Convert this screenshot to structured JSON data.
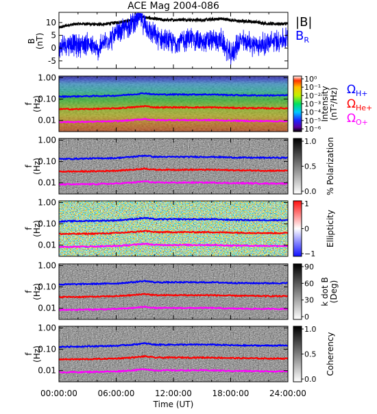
{
  "title": "ACE Mag 2004-086",
  "legend": {
    "B_total": {
      "label": "|B|",
      "color": "#000000"
    },
    "B_R": {
      "label": "B",
      "sub": "R",
      "color": "#0000ff"
    },
    "O_H": {
      "label": "Ω",
      "sub": "H+",
      "color": "#0000ff"
    },
    "O_He": {
      "label": "Ω",
      "sub": "He+",
      "color": "#ff0000"
    },
    "O_O": {
      "label": "Ω",
      "sub": "O+",
      "color": "#ff00ff"
    }
  },
  "x_axis": {
    "label": "Time (UT)",
    "ticks": [
      "00:00:00",
      "06:00:00",
      "12:00:00",
      "18:00:00",
      "24:00:00"
    ],
    "range_hours": [
      0,
      24
    ]
  },
  "chart_data": [
    {
      "type": "line",
      "title": "ACE Mag 2004-086",
      "ylabel": "B",
      "yunit": "(nT)",
      "xlabel": "",
      "ylim": [
        -8,
        14
      ],
      "yticks": [
        "10",
        "5",
        "0",
        "-5"
      ],
      "x": [
        0,
        1,
        2,
        3,
        4,
        5,
        6,
        7,
        8,
        8.5,
        9,
        10,
        11,
        12,
        13,
        14,
        15,
        16,
        17,
        18,
        19,
        20,
        21,
        22,
        23,
        24
      ],
      "series": [
        {
          "name": "|B|",
          "color": "#000000",
          "values": [
            8,
            9,
            9.5,
            9.5,
            9.2,
            9.5,
            10,
            10.5,
            11,
            12.5,
            12,
            11.5,
            11,
            11,
            11.2,
            11,
            11,
            11.2,
            11.5,
            11,
            10.5,
            10.5,
            10,
            9.5,
            9.5,
            9.5
          ]
        },
        {
          "name": "B_R",
          "color": "#0000ff",
          "values": [
            0,
            2,
            1,
            2,
            -1,
            3,
            5,
            8,
            11,
            12,
            9,
            5,
            3,
            2,
            3,
            4,
            2,
            3,
            3,
            -3,
            3,
            2,
            1,
            2,
            3,
            4
          ]
        }
      ]
    },
    {
      "type": "heatmap",
      "ylabel": "f",
      "yunit": "(Hz)",
      "yscale": "log",
      "ylim": [
        0.003,
        1.2
      ],
      "yticks": [
        "1.00",
        "0.10",
        "0.01"
      ],
      "colorbar": {
        "label": "Intensity",
        "unit": "(nT²/Hz)",
        "ticks": [
          "10⁰",
          "10⁻¹",
          "10⁻²",
          "10⁻³",
          "10⁻⁴",
          "10⁻⁵",
          "10⁻⁶"
        ],
        "scale": "rainbow"
      }
    },
    {
      "type": "heatmap",
      "ylabel": "f",
      "yunit": "(Hz)",
      "yscale": "log",
      "ylim": [
        0.003,
        1.2
      ],
      "yticks": [
        "1.00",
        "0.10",
        "0.01"
      ],
      "colorbar": {
        "label": "% Polarization",
        "unit": "",
        "ticks": [
          "1.0",
          "0.5",
          "0.0"
        ],
        "scale": "gray"
      }
    },
    {
      "type": "heatmap",
      "ylabel": "f",
      "yunit": "(Hz)",
      "yscale": "log",
      "ylim": [
        0.003,
        1.2
      ],
      "yticks": [
        "1.00",
        "0.10",
        "0.01"
      ],
      "colorbar": {
        "label": "Ellipticity",
        "unit": "",
        "ticks": [
          "1",
          "0",
          "−1"
        ],
        "scale": "bluewhitered"
      }
    },
    {
      "type": "heatmap",
      "ylabel": "f",
      "yunit": "(Hz)",
      "yscale": "log",
      "ylim": [
        0.003,
        1.2
      ],
      "yticks": [
        "1.00",
        "0.10",
        "0.01"
      ],
      "colorbar": {
        "label": "k dot B",
        "unit": "(Deg)",
        "ticks": [
          "90",
          "60",
          "30",
          "0"
        ],
        "scale": "gray"
      }
    },
    {
      "type": "heatmap",
      "ylabel": "f",
      "yunit": "(Hz)",
      "yscale": "log",
      "ylim": [
        0.003,
        1.2
      ],
      "yticks": [
        "1.00",
        "0.10",
        "0.01"
      ],
      "colorbar": {
        "label": "Coherency",
        "unit": "",
        "ticks": [
          "1.0",
          "0.5",
          "0.0"
        ],
        "scale": "gray"
      }
    }
  ],
  "gyrofrequency_lines": {
    "x": [
      0,
      2,
      4,
      6,
      8,
      9,
      10,
      12,
      14,
      16,
      17,
      18,
      20,
      22,
      24
    ],
    "H+": [
      0.13,
      0.135,
      0.14,
      0.145,
      0.17,
      0.19,
      0.165,
      0.165,
      0.165,
      0.165,
      0.16,
      0.155,
      0.15,
      0.15,
      0.15
    ],
    "He+": [
      0.034,
      0.034,
      0.035,
      0.037,
      0.042,
      0.047,
      0.041,
      0.041,
      0.041,
      0.041,
      0.04,
      0.039,
      0.038,
      0.037,
      0.037
    ],
    "O+": [
      0.0085,
      0.0085,
      0.0088,
      0.0092,
      0.0105,
      0.0118,
      0.0103,
      0.0103,
      0.0103,
      0.0103,
      0.01,
      0.0097,
      0.0095,
      0.0093,
      0.0093
    ]
  }
}
